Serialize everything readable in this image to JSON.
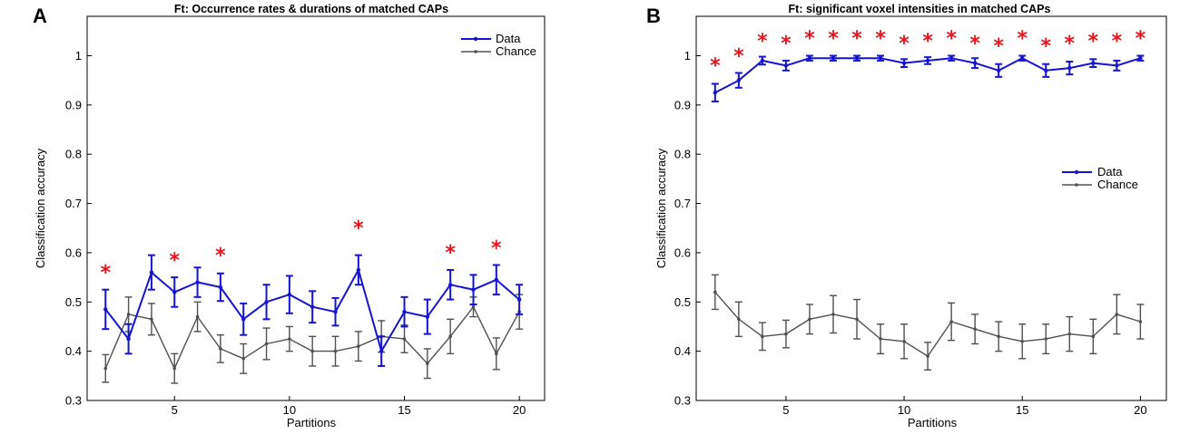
{
  "colors": {
    "data": "#1414d2",
    "chance": "#505050",
    "star": "#e8141b"
  },
  "chart_data": [
    {
      "panel": "A",
      "type": "line",
      "title": "Ft: Occurrence rates & durations of matched CAPs",
      "xlabel": "Partitions",
      "ylabel": "Classification accuracy",
      "xlim": [
        1.2,
        21.1
      ],
      "ylim": [
        0.3,
        1.08
      ],
      "xticks": [
        5,
        10,
        15,
        20
      ],
      "yticks": [
        0.3,
        0.4,
        0.5,
        0.6,
        0.7,
        0.8,
        0.9,
        1
      ],
      "ytick_labels": [
        "0.3",
        "0.4",
        "0.5",
        "0.6",
        "0.7",
        "0.8",
        "0.9",
        "1"
      ],
      "legend_position": "top-right",
      "x": [
        2,
        3,
        4,
        5,
        6,
        7,
        8,
        9,
        10,
        11,
        12,
        13,
        14,
        15,
        16,
        17,
        18,
        19,
        20
      ],
      "series": [
        {
          "name": "Data",
          "values": [
            0.485,
            0.425,
            0.56,
            0.52,
            0.54,
            0.53,
            0.465,
            0.5,
            0.515,
            0.49,
            0.48,
            0.565,
            0.4,
            0.48,
            0.47,
            0.535,
            0.525,
            0.545,
            0.505
          ],
          "errors": [
            0.04,
            0.03,
            0.035,
            0.03,
            0.03,
            0.028,
            0.032,
            0.035,
            0.038,
            0.032,
            0.028,
            0.03,
            0.03,
            0.03,
            0.035,
            0.03,
            0.03,
            0.03,
            0.03
          ]
        },
        {
          "name": "Chance",
          "values": [
            0.365,
            0.475,
            0.465,
            0.365,
            0.47,
            0.405,
            0.385,
            0.415,
            0.425,
            0.4,
            0.4,
            0.41,
            0.43,
            0.425,
            0.375,
            0.43,
            0.49,
            0.395,
            0.48
          ],
          "errors": [
            0.028,
            0.035,
            0.032,
            0.03,
            0.03,
            0.028,
            0.03,
            0.032,
            0.025,
            0.03,
            0.03,
            0.03,
            0.032,
            0.028,
            0.03,
            0.035,
            0.02,
            0.032,
            0.035
          ]
        }
      ],
      "significance_marker": "*",
      "significant_partitions": [
        2,
        5,
        7,
        13,
        17,
        19
      ],
      "significance_y": [
        0.565,
        0.59,
        0.6,
        0.655,
        0.605,
        0.615
      ]
    },
    {
      "panel": "B",
      "type": "line",
      "title": "Ft: significant voxel intensities in matched CAPs",
      "xlabel": "Partitions",
      "ylabel": "Classification accuracy",
      "xlim": [
        1.2,
        21.1
      ],
      "ylim": [
        0.3,
        1.08
      ],
      "xticks": [
        5,
        10,
        15,
        20
      ],
      "yticks": [
        0.3,
        0.4,
        0.5,
        0.6,
        0.7,
        0.8,
        0.9,
        1
      ],
      "ytick_labels": [
        "0.3",
        "0.4",
        "0.5",
        "0.6",
        "0.7",
        "0.8",
        "0.9",
        "1"
      ],
      "legend_position": "right",
      "x": [
        2,
        3,
        4,
        5,
        6,
        7,
        8,
        9,
        10,
        11,
        12,
        13,
        14,
        15,
        16,
        17,
        18,
        19,
        20
      ],
      "series": [
        {
          "name": "Data",
          "values": [
            0.925,
            0.95,
            0.99,
            0.98,
            0.995,
            0.995,
            0.995,
            0.995,
            0.985,
            0.99,
            0.995,
            0.985,
            0.97,
            0.995,
            0.97,
            0.975,
            0.985,
            0.98,
            0.995
          ],
          "errors": [
            0.018,
            0.015,
            0.008,
            0.01,
            0.005,
            0.005,
            0.005,
            0.005,
            0.008,
            0.007,
            0.005,
            0.01,
            0.013,
            0.005,
            0.013,
            0.013,
            0.008,
            0.01,
            0.005
          ]
        },
        {
          "name": "Chance",
          "values": [
            0.52,
            0.465,
            0.43,
            0.435,
            0.465,
            0.475,
            0.465,
            0.425,
            0.42,
            0.39,
            0.46,
            0.445,
            0.43,
            0.42,
            0.425,
            0.435,
            0.43,
            0.475,
            0.46
          ],
          "errors": [
            0.035,
            0.035,
            0.028,
            0.028,
            0.03,
            0.038,
            0.04,
            0.03,
            0.035,
            0.028,
            0.038,
            0.03,
            0.03,
            0.035,
            0.03,
            0.035,
            0.035,
            0.04,
            0.035
          ]
        }
      ],
      "significance_marker": "*",
      "significant_partitions": [
        2,
        3,
        4,
        5,
        6,
        7,
        8,
        9,
        10,
        11,
        12,
        13,
        14,
        15,
        16,
        17,
        18,
        19,
        20
      ],
      "significance_y": [
        0.985,
        1.005,
        1.035,
        1.03,
        1.04,
        1.04,
        1.04,
        1.04,
        1.03,
        1.035,
        1.04,
        1.03,
        1.025,
        1.04,
        1.025,
        1.03,
        1.035,
        1.035,
        1.04
      ]
    }
  ]
}
